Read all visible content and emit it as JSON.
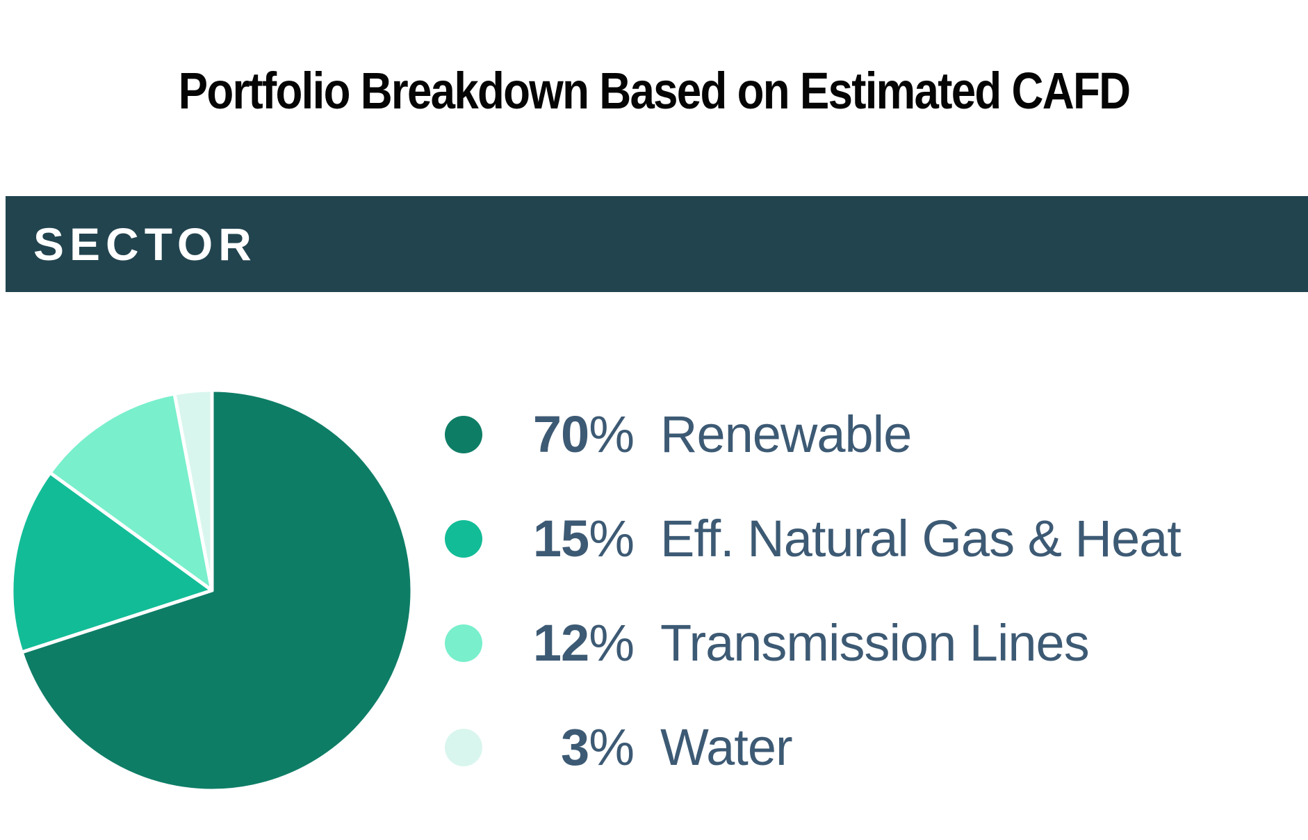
{
  "title": "Portfolio Breakdown Based on Estimated CAFD",
  "section_header": {
    "label": "SECTOR",
    "background_color": "#22444f",
    "text_color": "#ffffff"
  },
  "chart_data": {
    "type": "pie",
    "title": "Portfolio Breakdown Based on Estimated CAFD",
    "section": "SECTOR",
    "categories": [
      "Renewable",
      "Eff. Natural Gas & Heat",
      "Transmission Lines",
      "Water"
    ],
    "values": [
      70,
      15,
      12,
      3
    ],
    "unit": "%",
    "colors": [
      "#0e7d66",
      "#12bc97",
      "#79efcc",
      "#d9f6ee"
    ],
    "start_angle_deg": 0,
    "direction": "clockwise",
    "slice_separator_color": "#ffffff",
    "legend_position": "right",
    "legend_text_color": "#3d5a74"
  },
  "legend": {
    "items": [
      {
        "value": "70",
        "percent_sign": "%",
        "label": "Renewable",
        "color": "#0e7d66"
      },
      {
        "value": "15",
        "percent_sign": "%",
        "label": "Eff. Natural Gas & Heat",
        "color": "#12bc97"
      },
      {
        "value": "12",
        "percent_sign": "%",
        "label": "Transmission Lines",
        "color": "#79efcc"
      },
      {
        "value": "3",
        "percent_sign": "%",
        "label": "Water",
        "color": "#d9f6ee"
      }
    ]
  }
}
